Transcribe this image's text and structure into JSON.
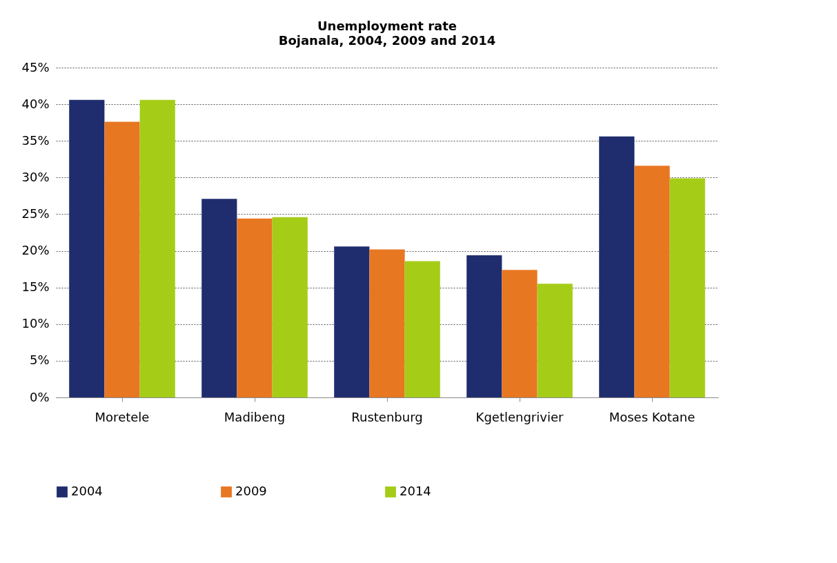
{
  "chart_data": {
    "type": "bar",
    "title": "Unemployment rate",
    "subtitle": "Bojanala, 2004, 2009 and 2014",
    "categories": [
      "Moretele",
      "Madibeng",
      "Rustenburg",
      "Kgetlengrivier",
      "Moses Kotane"
    ],
    "series": [
      {
        "name": "2004",
        "color": "#1f2d6e",
        "values": [
          40.6,
          27.1,
          20.6,
          19.4,
          35.6
        ]
      },
      {
        "name": "2009",
        "color": "#e87722",
        "values": [
          37.6,
          24.4,
          20.2,
          17.4,
          31.6
        ]
      },
      {
        "name": "2014",
        "color": "#a5cd18",
        "values": [
          40.6,
          24.6,
          18.6,
          15.5,
          29.9
        ]
      }
    ],
    "ylim": [
      0,
      45
    ],
    "yticks": [
      {
        "value": 0,
        "label": "0%"
      },
      {
        "value": 5,
        "label": "5%"
      },
      {
        "value": 10,
        "label": "10%"
      },
      {
        "value": 15,
        "label": "15%"
      },
      {
        "value": 20,
        "label": "20%"
      },
      {
        "value": 25,
        "label": "25%"
      },
      {
        "value": 30,
        "label": "30%"
      },
      {
        "value": 35,
        "label": "35%"
      },
      {
        "value": 40,
        "label": "40%"
      },
      {
        "value": 45,
        "label": "45%"
      }
    ],
    "grid": "y",
    "legend": "bottom"
  }
}
